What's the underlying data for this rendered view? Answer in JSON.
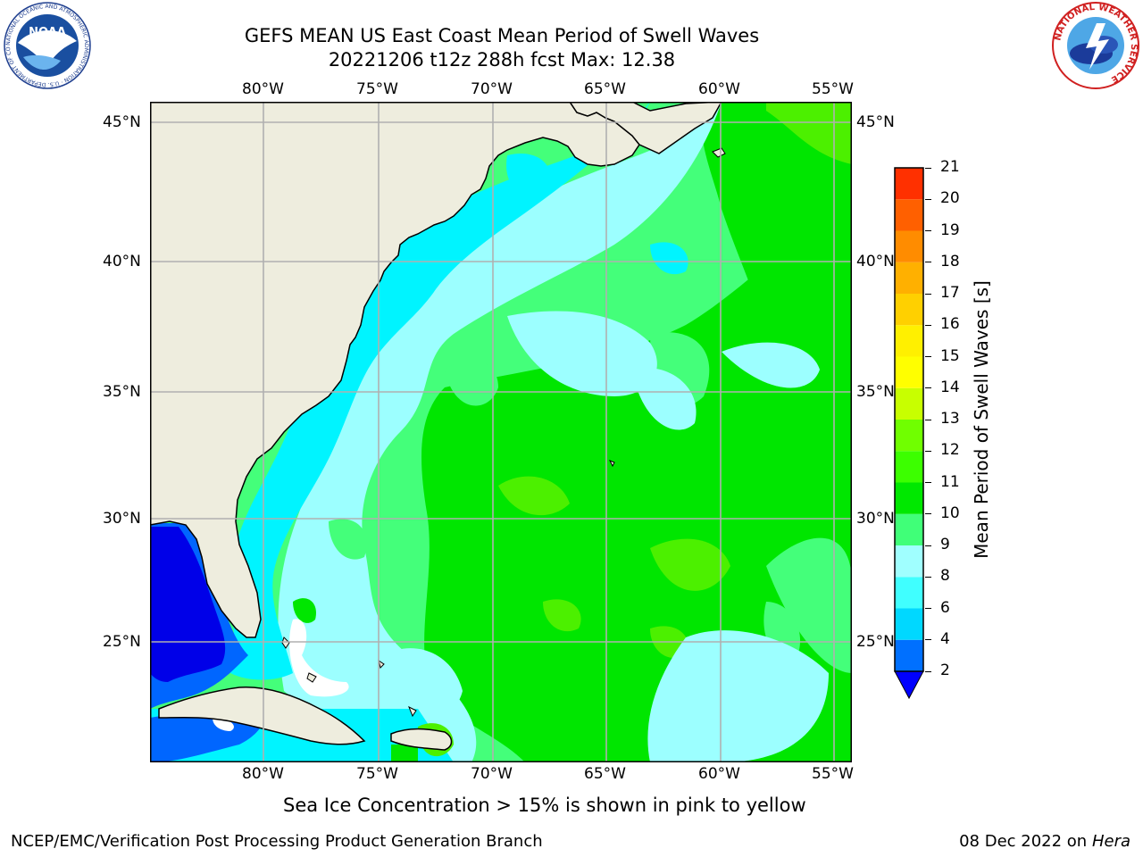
{
  "header": {
    "title_line1": "GEFS MEAN US East Coast Mean Period of Swell Waves",
    "title_line2": "20221206 t12z 288h fcst   Max: 12.38"
  },
  "logos": {
    "left": {
      "name": "noaa-logo",
      "text": "NOAA",
      "ring_text": "NATIONAL OCEANIC AND ATMOSPHERIC ADMINISTRATION · U.S. DEPARTMENT OF COMMERCE"
    },
    "right": {
      "name": "nws-logo",
      "ring_text": "NATIONAL WEATHER SERVICE"
    }
  },
  "map": {
    "lon_labels": [
      "80°W",
      "75°W",
      "70°W",
      "65°W",
      "60°W",
      "55°W"
    ],
    "lat_labels": [
      "45°N",
      "40°N",
      "35°N",
      "30°N",
      "25°N"
    ],
    "colors": {
      "land": "#eeedde",
      "grid": "#b0b0b0",
      "coast": "#000000",
      "shelf_cyan": "#00f4ff",
      "light_cyan": "#9cffff",
      "mint": "#44ff7a",
      "green": "#00e600",
      "bright_green": "#4cf000",
      "blue": "#0066ff",
      "deep_blue": "#0000e8",
      "no_data": "#ffffff"
    }
  },
  "colorbar": {
    "label": "Mean Period of Swell Waves [s]",
    "ticks": [
      "2",
      "4",
      "6",
      "8",
      "9",
      "10",
      "11",
      "12",
      "13",
      "14",
      "15",
      "16",
      "17",
      "18",
      "19",
      "20",
      "21"
    ],
    "colors": [
      "#0070ff",
      "#00d8ff",
      "#40ffff",
      "#a0ffff",
      "#40ff78",
      "#00e800",
      "#3cff00",
      "#70ff00",
      "#c8ff00",
      "#ffff00",
      "#fff000",
      "#ffd000",
      "#ffb000",
      "#ff8c00",
      "#ff6000",
      "#ff3000",
      "#ff0000"
    ],
    "extend_color": "#0000ff"
  },
  "footer": {
    "caption": "Sea Ice Concentration > 15% is shown in pink to yellow",
    "credit": "NCEP/EMC/Verification Post Processing Product Generation Branch",
    "date": "08 Dec 2022 on",
    "machine": "Hera"
  }
}
